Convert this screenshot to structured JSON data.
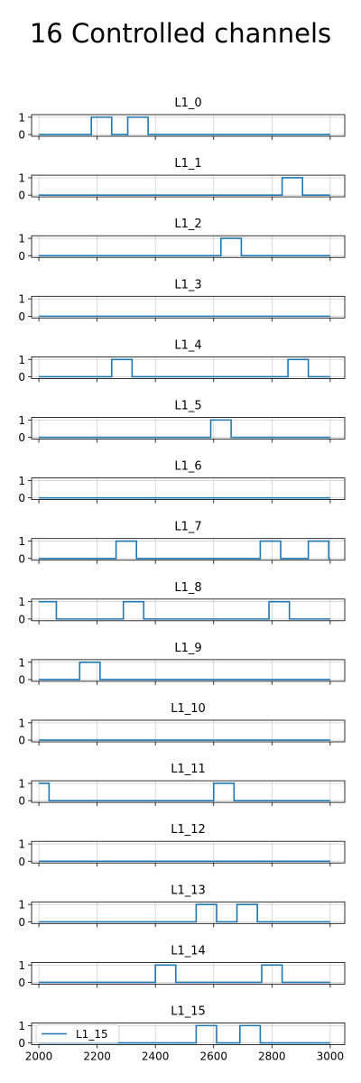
{
  "figure": {
    "title": "16 Controlled channels"
  },
  "colors": {
    "line": "#1f77b4",
    "grid": "#b0b0b0",
    "axes": "#000000"
  },
  "chart_data": {
    "type": "line",
    "title": "16 Controlled channels",
    "xlim": [
      1975,
      3050
    ],
    "ylim": [
      -0.1,
      1.15
    ],
    "xticks": [
      2000,
      2200,
      2400,
      2600,
      2800,
      3000
    ],
    "yticks": [
      0,
      1
    ],
    "grid": true,
    "x_tick_labels_only_on_last": true,
    "legend": {
      "subplot": 15,
      "placement": "upper-left",
      "entries": [
        "L1_15"
      ]
    },
    "x_range": [
      2000,
      3000
    ],
    "series": [
      {
        "name": "L1_0",
        "high_intervals": [
          [
            2180,
            2250
          ],
          [
            2305,
            2375
          ]
        ]
      },
      {
        "name": "L1_1",
        "high_intervals": [
          [
            2835,
            2905
          ]
        ]
      },
      {
        "name": "L1_2",
        "high_intervals": [
          [
            2625,
            2695
          ]
        ]
      },
      {
        "name": "L1_3",
        "high_intervals": []
      },
      {
        "name": "L1_4",
        "high_intervals": [
          [
            2250,
            2320
          ],
          [
            2855,
            2925
          ]
        ]
      },
      {
        "name": "L1_5",
        "high_intervals": [
          [
            2590,
            2660
          ]
        ]
      },
      {
        "name": "L1_6",
        "high_intervals": []
      },
      {
        "name": "L1_7",
        "high_intervals": [
          [
            2265,
            2335
          ],
          [
            2760,
            2830
          ],
          [
            2925,
            2995
          ]
        ]
      },
      {
        "name": "L1_8",
        "high_intervals": [
          [
            2000,
            2060
          ],
          [
            2290,
            2360
          ],
          [
            2790,
            2860
          ]
        ]
      },
      {
        "name": "L1_9",
        "high_intervals": [
          [
            2140,
            2210
          ]
        ]
      },
      {
        "name": "L1_10",
        "high_intervals": []
      },
      {
        "name": "L1_11",
        "high_intervals": [
          [
            2000,
            2035
          ],
          [
            2600,
            2670
          ]
        ]
      },
      {
        "name": "L1_12",
        "high_intervals": []
      },
      {
        "name": "L1_13",
        "high_intervals": [
          [
            2540,
            2610
          ],
          [
            2680,
            2750
          ]
        ]
      },
      {
        "name": "L1_14",
        "high_intervals": [
          [
            2400,
            2470
          ],
          [
            2765,
            2835
          ]
        ]
      },
      {
        "name": "L1_15",
        "high_intervals": [
          [
            2540,
            2610
          ],
          [
            2690,
            2760
          ]
        ]
      }
    ]
  }
}
